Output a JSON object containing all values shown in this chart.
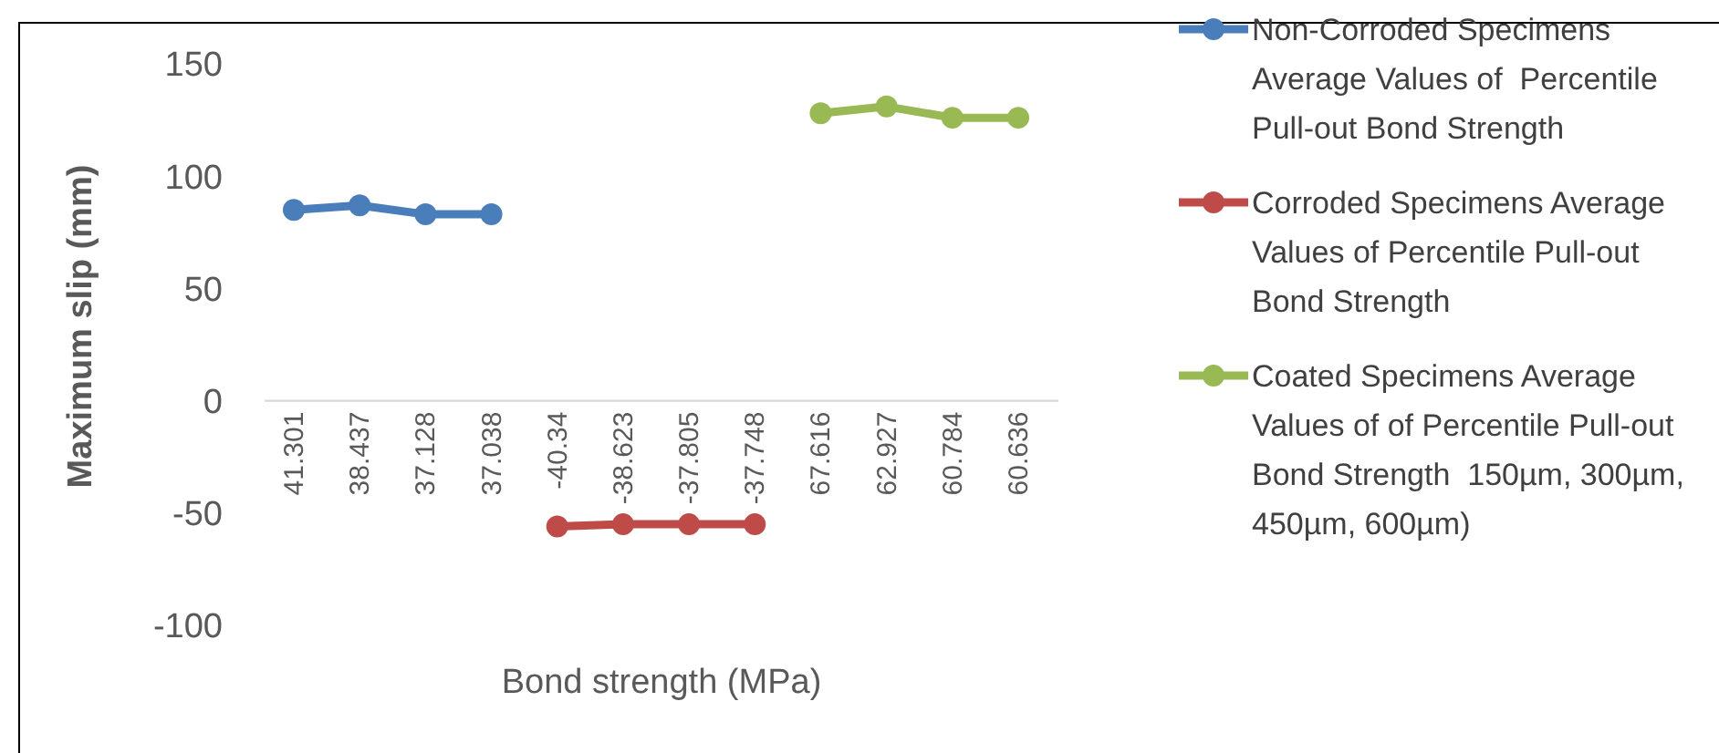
{
  "chart_data": {
    "type": "line",
    "xlabel": "Bond strength (MPa)",
    "ylabel": "Maximum slip (mm)",
    "categories": [
      "41.301",
      "38.437",
      "37.128",
      "37.038",
      "-40.34",
      "-38.623",
      "-37.805",
      "-37.748",
      "67.616",
      "62.927",
      "60.784",
      "60.636"
    ],
    "series": [
      {
        "name": "Non-Corroded Specimens Average Values of  Percentile Pull-out Bond Strength",
        "color": "#4a7ebb",
        "values": [
          85,
          87,
          83,
          83,
          null,
          null,
          null,
          null,
          null,
          null,
          null,
          null
        ]
      },
      {
        "name": "Corroded Specimens Average Values of Percentile Pull-out Bond Strength",
        "color": "#be4b48",
        "values": [
          null,
          null,
          null,
          null,
          -56,
          -55,
          -55,
          -55,
          null,
          null,
          null,
          null
        ]
      },
      {
        "name": "Coated Specimens Average Values of of Percentile Pull-out Bond Strength  150µm, 300µm, 450µm, 600µm)",
        "color": "#98b954",
        "values": [
          null,
          null,
          null,
          null,
          null,
          null,
          null,
          null,
          128,
          131,
          126,
          126
        ]
      }
    ],
    "ylim": [
      -100,
      150
    ],
    "yticks": [
      -100,
      -50,
      0,
      50,
      100,
      150
    ],
    "grid": false,
    "legend": "right",
    "marker": "circle",
    "line_style": "solid"
  }
}
